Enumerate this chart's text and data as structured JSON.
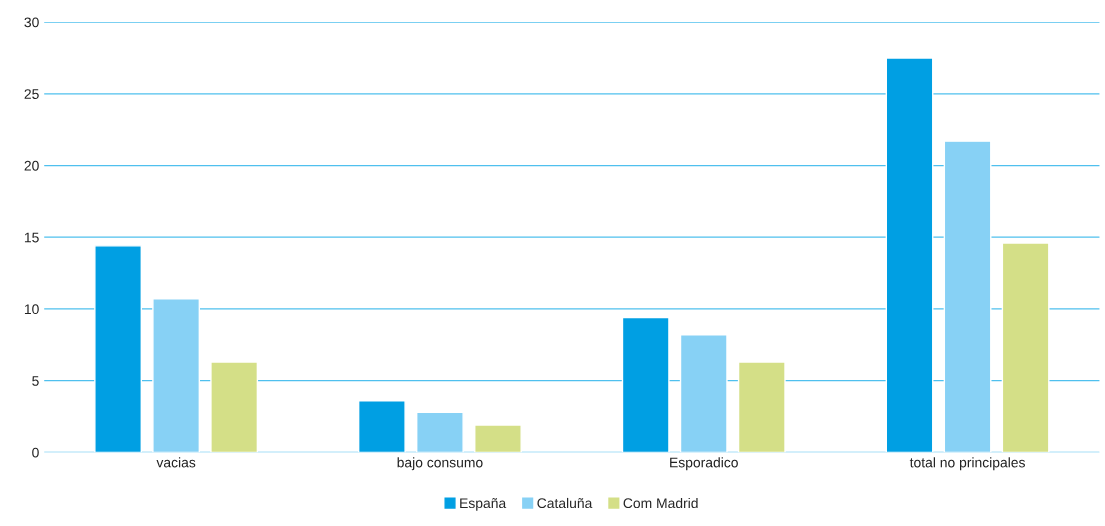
{
  "chart_data": {
    "type": "bar",
    "categories": [
      "vacias",
      "bajo consumo",
      "Esporadico",
      "total no principales"
    ],
    "series": [
      {
        "name": "España",
        "color": "#009fe3",
        "values": [
          14.4,
          3.6,
          9.4,
          27.5
        ]
      },
      {
        "name": "Cataluña",
        "color": "#87d1f5",
        "values": [
          10.7,
          2.8,
          8.2,
          21.7
        ]
      },
      {
        "name": "Com Madrid",
        "color": "#d4df87",
        "values": [
          6.3,
          1.9,
          6.3,
          14.6
        ]
      }
    ],
    "ylim": [
      0,
      30
    ],
    "yticks": [
      0,
      5,
      10,
      15,
      20,
      25,
      30
    ],
    "grid": "y",
    "legend": "bottom"
  }
}
